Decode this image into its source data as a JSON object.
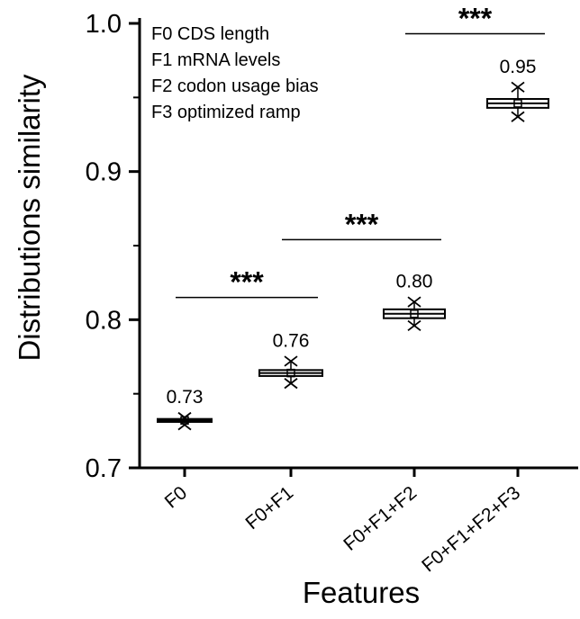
{
  "chart_data": {
    "type": "box",
    "title": "",
    "xlabel": "Features",
    "ylabel": "Distributions similarity",
    "ylim": [
      0.7,
      1.0
    ],
    "yticks": [
      "0.7",
      "0.8",
      "0.9",
      "1.0"
    ],
    "categories": [
      "F0",
      "F0+F1",
      "F0+F1+F2",
      "F0+F1+F2+F3"
    ],
    "boxes": [
      {
        "category": "F0",
        "min": 0.729,
        "q1": 0.731,
        "median": 0.732,
        "q3": 0.733,
        "max": 0.734,
        "mean": 0.732,
        "label": "0.73"
      },
      {
        "category": "F0+F1",
        "min": 0.757,
        "q1": 0.762,
        "median": 0.764,
        "q3": 0.766,
        "max": 0.772,
        "mean": 0.764,
        "label": "0.76"
      },
      {
        "category": "F0+F1+F2",
        "min": 0.796,
        "q1": 0.801,
        "median": 0.804,
        "q3": 0.807,
        "max": 0.812,
        "mean": 0.804,
        "label": "0.80"
      },
      {
        "category": "F0+F1+F2+F3",
        "min": 0.937,
        "q1": 0.943,
        "median": 0.946,
        "q3": 0.949,
        "max": 0.957,
        "mean": 0.946,
        "label": "0.95"
      }
    ],
    "significance": [
      {
        "from": "F0",
        "to": "F0+F1",
        "y": 0.815,
        "label": "***"
      },
      {
        "from": "F0+F1",
        "to": "F0+F1+F2",
        "y": 0.854,
        "label": "***"
      },
      {
        "from": "F0+F1+F2",
        "to": "F0+F1+F2+F3",
        "y": 0.993,
        "label": "***"
      }
    ],
    "legend": {
      "placement": "top-left",
      "entries": [
        "F0 CDS length",
        "F1 mRNA levels",
        "F2 codon usage bias",
        "F3 optimized ramp"
      ]
    }
  }
}
